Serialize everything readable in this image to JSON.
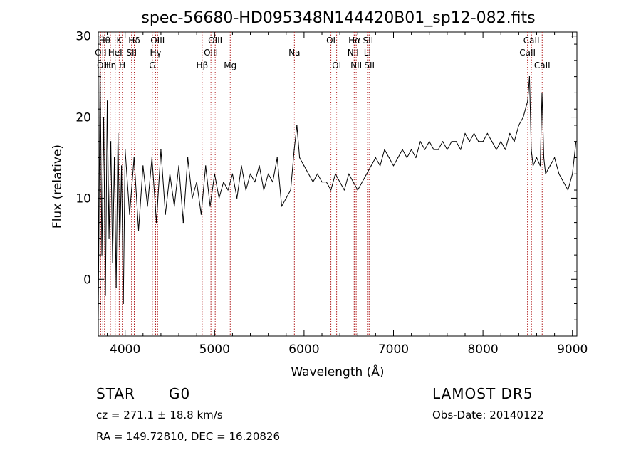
{
  "chart_data": {
    "type": "line",
    "title": "spec-56680-HD095348N144420B01_sp12-082.fits",
    "xlabel": "Wavelength (Å)",
    "ylabel": "Flux (relative)",
    "xlim": [
      3700,
      9050
    ],
    "ylim": [
      -7,
      30.5
    ],
    "xticks": [
      4000,
      5000,
      6000,
      7000,
      8000,
      9000
    ],
    "yticks": [
      0,
      10,
      20,
      30
    ],
    "grid": false,
    "series": [
      {
        "x": [
          3700,
          3720,
          3740,
          3760,
          3780,
          3800,
          3820,
          3840,
          3860,
          3880,
          3900,
          3920,
          3940,
          3960,
          3980,
          4000,
          4050,
          4100,
          4150,
          4200,
          4250,
          4300,
          4350,
          4400,
          4450,
          4500,
          4550,
          4600,
          4650,
          4700,
          4750,
          4800,
          4850,
          4900,
          4950,
          5000,
          5050,
          5100,
          5150,
          5200,
          5250,
          5300,
          5350,
          5400,
          5450,
          5500,
          5550,
          5600,
          5650,
          5700,
          5750,
          5800,
          5850,
          5890,
          5920,
          5950,
          6000,
          6050,
          6100,
          6150,
          6200,
          6250,
          6300,
          6350,
          6400,
          6450,
          6500,
          6550,
          6600,
          6650,
          6700,
          6750,
          6800,
          6850,
          6900,
          6950,
          7000,
          7050,
          7100,
          7150,
          7200,
          7250,
          7300,
          7350,
          7400,
          7450,
          7500,
          7550,
          7600,
          7650,
          7700,
          7750,
          7800,
          7850,
          7900,
          7950,
          8000,
          8050,
          8100,
          8150,
          8200,
          8250,
          8300,
          8350,
          8400,
          8450,
          8500,
          8520,
          8540,
          8560,
          8600,
          8640,
          8660,
          8680,
          8700,
          8750,
          8800,
          8850,
          8900,
          8950,
          9000,
          9040
        ],
        "y": [
          -5,
          27,
          3,
          20,
          -2,
          22,
          5,
          17,
          2,
          15,
          -1,
          18,
          4,
          14,
          -3,
          16,
          8,
          15,
          6,
          14,
          9,
          15,
          7,
          16,
          8,
          13,
          9,
          14,
          7,
          15,
          10,
          12,
          8,
          14,
          9,
          13,
          10,
          12,
          11,
          13,
          10,
          14,
          11,
          13,
          12,
          14,
          11,
          13,
          12,
          15,
          9,
          10,
          11,
          16,
          19,
          15,
          14,
          13,
          12,
          13,
          12,
          12,
          11,
          13,
          12,
          11,
          13,
          12,
          11,
          12,
          13,
          14,
          15,
          14,
          16,
          15,
          14,
          15,
          16,
          15,
          16,
          15,
          17,
          16,
          17,
          16,
          16,
          17,
          16,
          17,
          17,
          16,
          18,
          17,
          18,
          17,
          17,
          18,
          17,
          16,
          17,
          16,
          18,
          17,
          19,
          20,
          22,
          25,
          16,
          14,
          15,
          14,
          23,
          15,
          13,
          14,
          15,
          13,
          12,
          11,
          13,
          17
        ]
      }
    ],
    "lines": [
      {
        "x": 3727,
        "label": "OII",
        "row": 2
      },
      {
        "x": 3750,
        "label": "OII",
        "row": 3
      },
      {
        "x": 3770,
        "label": "Hθ",
        "row": 1
      },
      {
        "x": 3835,
        "label": "Hη",
        "row": 3
      },
      {
        "x": 3889,
        "label": "HeI",
        "row": 2
      },
      {
        "x": 3934,
        "label": "K",
        "row": 1
      },
      {
        "x": 3968,
        "label": "H",
        "row": 3
      },
      {
        "x": 4072,
        "label": "SII",
        "row": 2
      },
      {
        "x": 4102,
        "label": "Hδ",
        "row": 1
      },
      {
        "x": 4304,
        "label": "G",
        "row": 3
      },
      {
        "x": 4341,
        "label": "Hγ",
        "row": 2
      },
      {
        "x": 4363,
        "label": "OIII",
        "row": 1
      },
      {
        "x": 4861,
        "label": "Hβ",
        "row": 3
      },
      {
        "x": 4959,
        "label": "OIII",
        "row": 2
      },
      {
        "x": 5007,
        "label": "OIII",
        "row": 1
      },
      {
        "x": 5175,
        "label": "Mg",
        "row": 3
      },
      {
        "x": 5892,
        "label": "Na",
        "row": 2
      },
      {
        "x": 6300,
        "label": "OI",
        "row": 1
      },
      {
        "x": 6364,
        "label": "OI",
        "row": 3
      },
      {
        "x": 6548,
        "label": "NII",
        "row": 2
      },
      {
        "x": 6563,
        "label": "Hα",
        "row": 1
      },
      {
        "x": 6583,
        "label": "NII",
        "row": 3
      },
      {
        "x": 6708,
        "label": "Li",
        "row": 2
      },
      {
        "x": 6716,
        "label": "SII",
        "row": 1
      },
      {
        "x": 6731,
        "label": "SII",
        "row": 3
      },
      {
        "x": 8498,
        "label": "CaII",
        "row": 2
      },
      {
        "x": 8542,
        "label": "CaII",
        "row": 1
      },
      {
        "x": 8662,
        "label": "CaII",
        "row": 3
      }
    ]
  },
  "info": {
    "class": "STAR",
    "subclass": "G0",
    "survey": "LAMOST DR5",
    "cz": "cz = 271.1 ± 18.8 km/s",
    "obs_date": "Obs-Date: 20140122",
    "coords": "RA = 149.72810, DEC =  16.20826"
  },
  "colors": {
    "spectrum": "#000000",
    "lines": "#b22222"
  }
}
